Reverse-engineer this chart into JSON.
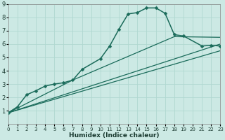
{
  "xlabel": "Humidex (Indice chaleur)",
  "ylabel": "",
  "bg_color": "#cce9e4",
  "grid_color": "#b0d8d0",
  "line_color": "#1a6b5a",
  "xlim": [
    0,
    23
  ],
  "ylim": [
    0,
    9
  ],
  "xticks": [
    0,
    1,
    2,
    3,
    4,
    5,
    6,
    7,
    8,
    9,
    10,
    11,
    12,
    13,
    14,
    15,
    16,
    17,
    18,
    19,
    20,
    21,
    22,
    23
  ],
  "yticks": [
    1,
    2,
    3,
    4,
    5,
    6,
    7,
    8,
    9
  ],
  "series_main": {
    "x": [
      0,
      1,
      2,
      3,
      4,
      5,
      6,
      7,
      8,
      10,
      11,
      12,
      13,
      14,
      15,
      16,
      17,
      18,
      19,
      21,
      22,
      23
    ],
    "y": [
      0.85,
      1.3,
      2.2,
      2.5,
      2.85,
      3.0,
      3.1,
      3.3,
      4.1,
      4.9,
      5.85,
      7.1,
      8.25,
      8.35,
      8.7,
      8.7,
      8.3,
      6.7,
      6.6,
      5.85,
      5.9,
      5.85
    ],
    "markersize": 2.5,
    "linewidth": 1.1
  },
  "series_line1": {
    "x": [
      0,
      23
    ],
    "y": [
      0.85,
      6.0
    ],
    "linewidth": 0.9
  },
  "series_line2": {
    "x": [
      0,
      7,
      18,
      23
    ],
    "y": [
      0.85,
      3.3,
      6.55,
      6.5
    ],
    "linewidth": 0.9
  },
  "series_line3": {
    "x": [
      0,
      23
    ],
    "y": [
      0.85,
      5.5
    ],
    "linewidth": 0.9
  }
}
